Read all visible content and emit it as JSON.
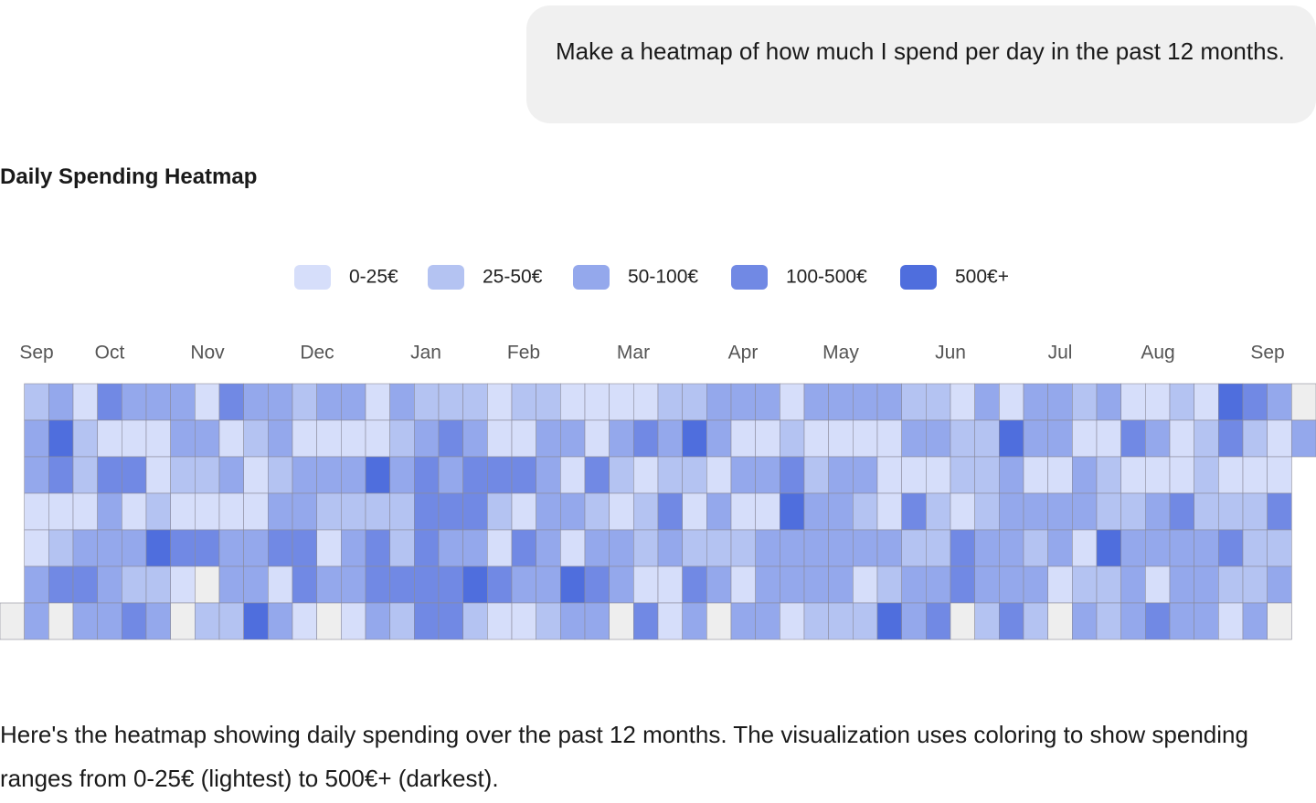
{
  "user_message": "Make a heatmap of how much I spend per day in the past 12 months.",
  "response": {
    "title": "Daily Spending Heatmap",
    "legend": [
      {
        "label": "0-25€",
        "color": "#d6defa"
      },
      {
        "label": "25-50€",
        "color": "#b4c3f2"
      },
      {
        "label": "50-100€",
        "color": "#94a8ec"
      },
      {
        "label": "100-500€",
        "color": "#7189e4"
      },
      {
        "label": "500€+",
        "color": "#4f6edd"
      }
    ],
    "empty_color": "#eeeeee",
    "months": [
      "Sep",
      "Oct",
      "Nov",
      "Dec",
      "Jan",
      "Feb",
      "Mar",
      "Apr",
      "May",
      "Jun",
      "Jul",
      "Aug",
      "Sep"
    ],
    "weeks": [
      [
        null,
        null,
        null,
        null,
        null,
        null,
        0
      ],
      [
        2,
        3,
        3,
        1,
        1,
        3,
        3
      ],
      [
        3,
        5,
        4,
        1,
        2,
        4,
        0
      ],
      [
        1,
        2,
        2,
        1,
        3,
        4,
        3
      ],
      [
        4,
        1,
        4,
        3,
        3,
        3,
        3
      ],
      [
        3,
        1,
        4,
        1,
        3,
        2,
        4
      ],
      [
        3,
        1,
        1,
        2,
        5,
        2,
        3
      ],
      [
        3,
        3,
        2,
        1,
        4,
        1,
        0
      ],
      [
        1,
        3,
        2,
        1,
        4,
        0,
        2
      ],
      [
        4,
        1,
        3,
        1,
        3,
        3,
        2
      ],
      [
        3,
        2,
        1,
        1,
        3,
        3,
        5
      ],
      [
        3,
        3,
        2,
        3,
        4,
        1,
        3
      ],
      [
        2,
        1,
        3,
        3,
        4,
        4,
        1
      ],
      [
        3,
        1,
        3,
        2,
        1,
        3,
        0
      ],
      [
        3,
        1,
        3,
        2,
        3,
        3,
        1
      ],
      [
        1,
        1,
        5,
        2,
        4,
        4,
        3
      ],
      [
        3,
        2,
        3,
        2,
        2,
        4,
        2
      ],
      [
        2,
        3,
        4,
        4,
        4,
        4,
        4
      ],
      [
        2,
        4,
        3,
        4,
        3,
        4,
        4
      ],
      [
        2,
        3,
        4,
        4,
        3,
        5,
        2
      ],
      [
        1,
        1,
        4,
        2,
        1,
        4,
        1
      ],
      [
        2,
        1,
        4,
        1,
        4,
        3,
        1
      ],
      [
        2,
        3,
        3,
        3,
        3,
        3,
        2
      ],
      [
        1,
        3,
        1,
        3,
        1,
        5,
        3
      ],
      [
        1,
        1,
        4,
        2,
        3,
        4,
        3
      ],
      [
        1,
        3,
        2,
        1,
        3,
        3,
        0
      ],
      [
        1,
        4,
        1,
        2,
        2,
        1,
        4
      ],
      [
        2,
        3,
        2,
        4,
        3,
        1,
        1
      ],
      [
        2,
        5,
        2,
        1,
        2,
        4,
        3
      ],
      [
        3,
        3,
        1,
        3,
        2,
        3,
        0
      ],
      [
        3,
        1,
        3,
        1,
        2,
        1,
        3
      ],
      [
        3,
        1,
        3,
        1,
        3,
        3,
        3
      ],
      [
        1,
        2,
        4,
        5,
        3,
        3,
        1
      ],
      [
        3,
        1,
        2,
        3,
        3,
        3,
        2
      ],
      [
        3,
        1,
        3,
        3,
        3,
        3,
        2
      ],
      [
        3,
        1,
        3,
        2,
        3,
        1,
        2
      ],
      [
        3,
        1,
        1,
        1,
        3,
        2,
        5
      ],
      [
        2,
        3,
        1,
        4,
        2,
        3,
        3
      ],
      [
        2,
        3,
        1,
        2,
        2,
        3,
        4
      ],
      [
        1,
        2,
        2,
        1,
        4,
        4,
        0
      ],
      [
        3,
        2,
        2,
        2,
        3,
        3,
        2
      ],
      [
        1,
        5,
        3,
        3,
        3,
        3,
        4
      ],
      [
        3,
        3,
        1,
        3,
        2,
        3,
        2
      ],
      [
        3,
        3,
        1,
        3,
        3,
        1,
        0
      ],
      [
        2,
        1,
        3,
        3,
        1,
        2,
        3
      ],
      [
        3,
        1,
        2,
        2,
        5,
        2,
        2
      ],
      [
        1,
        4,
        1,
        2,
        3,
        3,
        3
      ],
      [
        1,
        3,
        1,
        3,
        3,
        1,
        4
      ],
      [
        2,
        1,
        1,
        4,
        3,
        3,
        3
      ],
      [
        1,
        2,
        2,
        2,
        3,
        3,
        3
      ],
      [
        5,
        4,
        1,
        2,
        4,
        2,
        1
      ],
      [
        4,
        2,
        1,
        2,
        2,
        2,
        3
      ],
      [
        3,
        1,
        1,
        4,
        2,
        3,
        0
      ],
      [
        0,
        3,
        null,
        null,
        null,
        null,
        null
      ]
    ],
    "description": "Here's the heatmap showing daily spending over the past 12 months. The visualization uses coloring to show spending ranges from 0-25€ (lightest) to 500€+ (darkest)."
  }
}
